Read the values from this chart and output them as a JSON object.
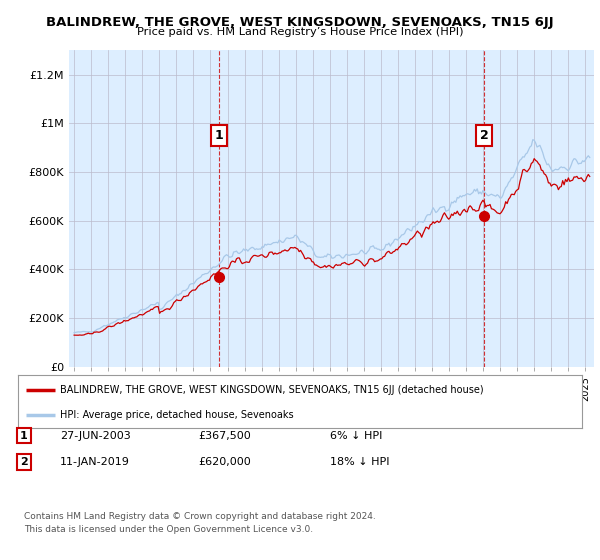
{
  "title": "BALINDREW, THE GROVE, WEST KINGSDOWN, SEVENOAKS, TN15 6JJ",
  "subtitle": "Price paid vs. HM Land Registry’s House Price Index (HPI)",
  "ylabel_ticks": [
    "£0",
    "£200K",
    "£400K",
    "£600K",
    "£800K",
    "£1M",
    "£1.2M"
  ],
  "ylim": [
    0,
    1300000
  ],
  "yticks": [
    0,
    200000,
    400000,
    600000,
    800000,
    1000000,
    1200000
  ],
  "sale1_year": 2003.5,
  "sale1_price": 367500,
  "sale2_year": 2019.04,
  "sale2_price": 620000,
  "hpi_color": "#a8c8e8",
  "price_color": "#cc0000",
  "vline_color": "#cc0000",
  "legend_box_color": "#cc0000",
  "background_chart": "#ddeeff",
  "background_outer": "#ffffff",
  "grid_color": "#bbbbcc",
  "footnote1": "Contains HM Land Registry data © Crown copyright and database right 2024.",
  "footnote2": "This data is licensed under the Open Government Licence v3.0.",
  "legend_label_red": "BALINDREW, THE GROVE, WEST KINGSDOWN, SEVENOAKS, TN15 6JJ (detached house)",
  "legend_label_blue": "HPI: Average price, detached house, Sevenoaks"
}
